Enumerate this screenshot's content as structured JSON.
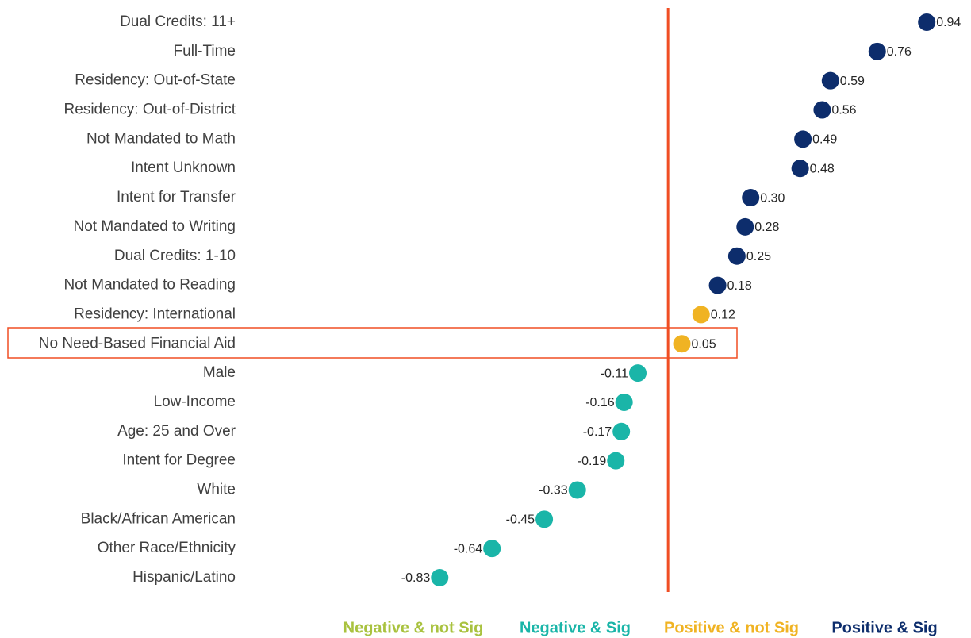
{
  "chart_data": {
    "type": "dot",
    "categories": [
      "Dual Credits: 11+",
      "Full-Time",
      "Residency: Out-of-State",
      "Residency: Out-of-District",
      "Not Mandated to Math",
      "Intent Unknown",
      "Intent for Transfer",
      "Not Mandated to Writing",
      "Dual Credits: 1-10",
      "Not Mandated to Reading",
      "Residency: International",
      "No Need-Based Financial Aid",
      "Male",
      "Low-Income",
      "Age: 25 and Over",
      "Intent for Degree",
      "White",
      "Black/African American",
      "Other Race/Ethnicity",
      "Hispanic/Latino"
    ],
    "xlim": [
      -0.9,
      1.0
    ],
    "series": [
      {
        "name": "Negative & not Sig",
        "color": "#a9c23f",
        "values": [
          null,
          null,
          null,
          null,
          null,
          null,
          null,
          null,
          null,
          null,
          null,
          null,
          null,
          null,
          null,
          null,
          null,
          null,
          null,
          null
        ],
        "value_labels": [
          null,
          null,
          null,
          null,
          null,
          null,
          null,
          null,
          null,
          null,
          null,
          null,
          null,
          null,
          null,
          null,
          null,
          null,
          null,
          null
        ]
      },
      {
        "name": "Negative & Sig",
        "color": "#1ab5a8",
        "values": [
          null,
          null,
          null,
          null,
          null,
          null,
          null,
          null,
          null,
          null,
          null,
          null,
          -0.11,
          -0.16,
          -0.17,
          -0.19,
          -0.33,
          -0.45,
          -0.64,
          -0.83
        ],
        "value_labels": [
          null,
          null,
          null,
          null,
          null,
          null,
          null,
          null,
          null,
          null,
          null,
          null,
          "-0.11",
          "-0.16",
          "-0.17",
          "-0.19",
          "-0.33",
          "-0.45",
          "-0.64",
          "-0.83"
        ]
      },
      {
        "name": "Positive & not Sig",
        "color": "#f0b323",
        "values": [
          null,
          null,
          null,
          null,
          null,
          null,
          null,
          null,
          null,
          null,
          0.12,
          0.05,
          null,
          null,
          null,
          null,
          null,
          null,
          null,
          null
        ],
        "value_labels": [
          null,
          null,
          null,
          null,
          null,
          null,
          null,
          null,
          null,
          null,
          "0.12",
          "0.05",
          null,
          null,
          null,
          null,
          null,
          null,
          null,
          null
        ]
      },
      {
        "name": "Positive & Sig",
        "color": "#0d2d6c",
        "values": [
          0.94,
          0.76,
          0.59,
          0.56,
          0.49,
          0.48,
          0.3,
          0.28,
          0.25,
          0.18,
          null,
          null,
          null,
          null,
          null,
          null,
          null,
          null,
          null,
          null
        ],
        "value_labels": [
          "0.94",
          "0.76",
          "0.59",
          "0.56",
          "0.49",
          "0.48",
          "0.30",
          "0.28",
          "0.25",
          "0.18",
          null,
          null,
          null,
          null,
          null,
          null,
          null,
          null,
          null,
          null
        ]
      }
    ]
  }
}
